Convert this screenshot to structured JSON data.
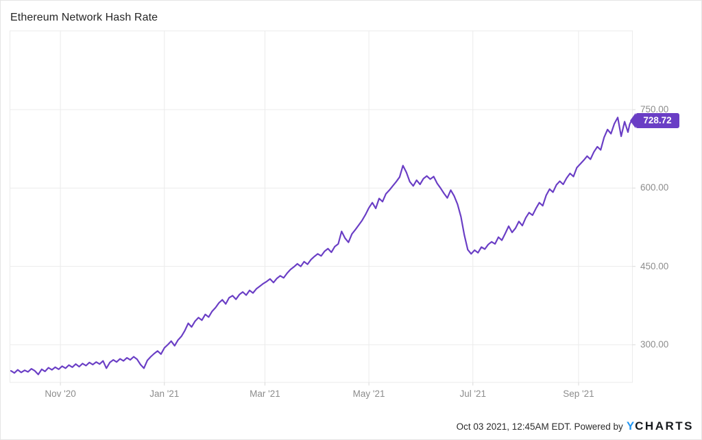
{
  "title": "Ethereum Network Hash Rate",
  "badge": {
    "label": "728.72"
  },
  "footer": {
    "timestamp": "Oct 03 2021, 12:45AM EDT. Powered by",
    "logo_y": "Y",
    "logo_charts": "CHARTS"
  },
  "colors": {
    "accent": "#6a3ec5",
    "grid": "#ebebeb",
    "axis_text": "#8c8c8c",
    "logo_blue": "#2196f3"
  },
  "chart_data": {
    "type": "line",
    "title": "Ethereum Network Hash Rate",
    "xlabel": "",
    "ylabel": "",
    "legend": "none",
    "grid": "on",
    "x_range": [
      "2020-10-03",
      "2021-10-02"
    ],
    "y_axis_side": "right",
    "y_ticks": [
      {
        "value": 750,
        "label": "750.00"
      },
      {
        "value": 600,
        "label": "600.00"
      },
      {
        "value": 450,
        "label": "450.00"
      },
      {
        "value": 300,
        "label": "300.00"
      }
    ],
    "x_ticks": [
      {
        "date": "2020-11-01",
        "label": "Nov '20"
      },
      {
        "date": "2021-01-01",
        "label": "Jan '21"
      },
      {
        "date": "2021-03-01",
        "label": "Mar '21"
      },
      {
        "date": "2021-05-01",
        "label": "May '21"
      },
      {
        "date": "2021-07-01",
        "label": "Jul '21"
      },
      {
        "date": "2021-09-01",
        "label": "Sep '21"
      }
    ],
    "series": [
      {
        "name": "Ethereum Network Hash Rate",
        "last_value": 728.72,
        "points": [
          [
            "2020-10-03",
            250
          ],
          [
            "2020-10-05",
            246
          ],
          [
            "2020-10-07",
            252
          ],
          [
            "2020-10-09",
            247
          ],
          [
            "2020-10-11",
            251
          ],
          [
            "2020-10-13",
            248
          ],
          [
            "2020-10-15",
            254
          ],
          [
            "2020-10-17",
            250
          ],
          [
            "2020-10-19",
            243
          ],
          [
            "2020-10-21",
            253
          ],
          [
            "2020-10-23",
            249
          ],
          [
            "2020-10-25",
            256
          ],
          [
            "2020-10-27",
            252
          ],
          [
            "2020-10-29",
            257
          ],
          [
            "2020-10-31",
            253
          ],
          [
            "2020-11-02",
            259
          ],
          [
            "2020-11-04",
            255
          ],
          [
            "2020-11-06",
            261
          ],
          [
            "2020-11-08",
            257
          ],
          [
            "2020-11-10",
            263
          ],
          [
            "2020-11-12",
            258
          ],
          [
            "2020-11-14",
            264
          ],
          [
            "2020-11-16",
            260
          ],
          [
            "2020-11-18",
            266
          ],
          [
            "2020-11-20",
            262
          ],
          [
            "2020-11-22",
            267
          ],
          [
            "2020-11-24",
            263
          ],
          [
            "2020-11-26",
            269
          ],
          [
            "2020-11-28",
            255
          ],
          [
            "2020-11-30",
            266
          ],
          [
            "2020-12-02",
            271
          ],
          [
            "2020-12-04",
            267
          ],
          [
            "2020-12-06",
            273
          ],
          [
            "2020-12-08",
            269
          ],
          [
            "2020-12-10",
            275
          ],
          [
            "2020-12-12",
            271
          ],
          [
            "2020-12-14",
            277
          ],
          [
            "2020-12-16",
            272
          ],
          [
            "2020-12-18",
            262
          ],
          [
            "2020-12-20",
            255
          ],
          [
            "2020-12-22",
            270
          ],
          [
            "2020-12-24",
            277
          ],
          [
            "2020-12-26",
            283
          ],
          [
            "2020-12-28",
            288
          ],
          [
            "2020-12-30",
            282
          ],
          [
            "2021-01-01",
            294
          ],
          [
            "2021-01-03",
            300
          ],
          [
            "2021-01-05",
            307
          ],
          [
            "2021-01-07",
            298
          ],
          [
            "2021-01-09",
            309
          ],
          [
            "2021-01-11",
            316
          ],
          [
            "2021-01-13",
            327
          ],
          [
            "2021-01-15",
            341
          ],
          [
            "2021-01-17",
            334
          ],
          [
            "2021-01-19",
            345
          ],
          [
            "2021-01-21",
            352
          ],
          [
            "2021-01-23",
            347
          ],
          [
            "2021-01-25",
            358
          ],
          [
            "2021-01-27",
            353
          ],
          [
            "2021-01-29",
            364
          ],
          [
            "2021-01-31",
            371
          ],
          [
            "2021-02-02",
            380
          ],
          [
            "2021-02-04",
            386
          ],
          [
            "2021-02-06",
            378
          ],
          [
            "2021-02-08",
            390
          ],
          [
            "2021-02-10",
            394
          ],
          [
            "2021-02-12",
            387
          ],
          [
            "2021-02-14",
            396
          ],
          [
            "2021-02-16",
            401
          ],
          [
            "2021-02-18",
            395
          ],
          [
            "2021-02-20",
            404
          ],
          [
            "2021-02-22",
            399
          ],
          [
            "2021-02-24",
            407
          ],
          [
            "2021-02-26",
            412
          ],
          [
            "2021-02-28",
            417
          ],
          [
            "2021-03-02",
            421
          ],
          [
            "2021-03-04",
            426
          ],
          [
            "2021-03-06",
            419
          ],
          [
            "2021-03-08",
            427
          ],
          [
            "2021-03-10",
            432
          ],
          [
            "2021-03-12",
            428
          ],
          [
            "2021-03-14",
            437
          ],
          [
            "2021-03-16",
            444
          ],
          [
            "2021-03-18",
            449
          ],
          [
            "2021-03-20",
            455
          ],
          [
            "2021-03-22",
            450
          ],
          [
            "2021-03-24",
            459
          ],
          [
            "2021-03-26",
            454
          ],
          [
            "2021-03-28",
            463
          ],
          [
            "2021-03-30",
            469
          ],
          [
            "2021-04-01",
            474
          ],
          [
            "2021-04-03",
            470
          ],
          [
            "2021-04-05",
            479
          ],
          [
            "2021-04-07",
            484
          ],
          [
            "2021-04-09",
            477
          ],
          [
            "2021-04-11",
            488
          ],
          [
            "2021-04-13",
            493
          ],
          [
            "2021-04-15",
            517
          ],
          [
            "2021-04-17",
            504
          ],
          [
            "2021-04-19",
            496
          ],
          [
            "2021-04-21",
            512
          ],
          [
            "2021-04-23",
            520
          ],
          [
            "2021-04-25",
            529
          ],
          [
            "2021-04-27",
            538
          ],
          [
            "2021-04-29",
            549
          ],
          [
            "2021-05-01",
            562
          ],
          [
            "2021-05-03",
            572
          ],
          [
            "2021-05-05",
            561
          ],
          [
            "2021-05-07",
            580
          ],
          [
            "2021-05-09",
            574
          ],
          [
            "2021-05-11",
            589
          ],
          [
            "2021-05-13",
            596
          ],
          [
            "2021-05-15",
            604
          ],
          [
            "2021-05-17",
            612
          ],
          [
            "2021-05-19",
            621
          ],
          [
            "2021-05-21",
            643
          ],
          [
            "2021-05-23",
            630
          ],
          [
            "2021-05-25",
            612
          ],
          [
            "2021-05-27",
            604
          ],
          [
            "2021-05-29",
            615
          ],
          [
            "2021-05-31",
            607
          ],
          [
            "2021-06-02",
            618
          ],
          [
            "2021-06-04",
            623
          ],
          [
            "2021-06-06",
            617
          ],
          [
            "2021-06-08",
            622
          ],
          [
            "2021-06-10",
            609
          ],
          [
            "2021-06-12",
            600
          ],
          [
            "2021-06-14",
            590
          ],
          [
            "2021-06-16",
            581
          ],
          [
            "2021-06-18",
            596
          ],
          [
            "2021-06-20",
            585
          ],
          [
            "2021-06-22",
            569
          ],
          [
            "2021-06-24",
            545
          ],
          [
            "2021-06-26",
            510
          ],
          [
            "2021-06-28",
            482
          ],
          [
            "2021-06-30",
            474
          ],
          [
            "2021-07-02",
            481
          ],
          [
            "2021-07-04",
            476
          ],
          [
            "2021-07-06",
            487
          ],
          [
            "2021-07-08",
            483
          ],
          [
            "2021-07-10",
            492
          ],
          [
            "2021-07-12",
            497
          ],
          [
            "2021-07-14",
            493
          ],
          [
            "2021-07-16",
            506
          ],
          [
            "2021-07-18",
            500
          ],
          [
            "2021-07-20",
            513
          ],
          [
            "2021-07-22",
            527
          ],
          [
            "2021-07-24",
            515
          ],
          [
            "2021-07-26",
            523
          ],
          [
            "2021-07-28",
            536
          ],
          [
            "2021-07-30",
            528
          ],
          [
            "2021-08-01",
            543
          ],
          [
            "2021-08-03",
            553
          ],
          [
            "2021-08-05",
            548
          ],
          [
            "2021-08-07",
            561
          ],
          [
            "2021-08-09",
            572
          ],
          [
            "2021-08-11",
            566
          ],
          [
            "2021-08-13",
            586
          ],
          [
            "2021-08-15",
            598
          ],
          [
            "2021-08-17",
            592
          ],
          [
            "2021-08-19",
            606
          ],
          [
            "2021-08-21",
            613
          ],
          [
            "2021-08-23",
            607
          ],
          [
            "2021-08-25",
            619
          ],
          [
            "2021-08-27",
            628
          ],
          [
            "2021-08-29",
            622
          ],
          [
            "2021-08-31",
            639
          ],
          [
            "2021-09-02",
            646
          ],
          [
            "2021-09-04",
            653
          ],
          [
            "2021-09-06",
            661
          ],
          [
            "2021-09-08",
            655
          ],
          [
            "2021-09-10",
            669
          ],
          [
            "2021-09-12",
            679
          ],
          [
            "2021-09-14",
            673
          ],
          [
            "2021-09-16",
            697
          ],
          [
            "2021-09-18",
            712
          ],
          [
            "2021-09-20",
            704
          ],
          [
            "2021-09-22",
            723
          ],
          [
            "2021-09-24",
            735
          ],
          [
            "2021-09-26",
            699
          ],
          [
            "2021-09-28",
            727
          ],
          [
            "2021-09-30",
            707
          ],
          [
            "2021-10-01",
            722
          ],
          [
            "2021-10-02",
            728.72
          ]
        ]
      }
    ]
  }
}
